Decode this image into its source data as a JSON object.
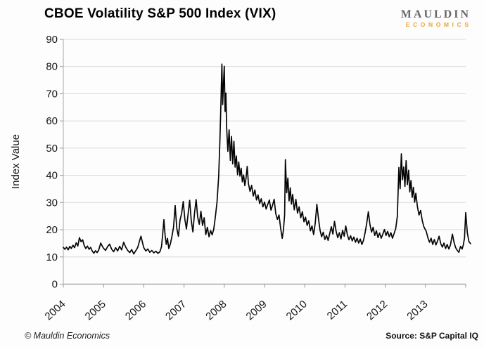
{
  "header": {
    "title": "CBOE Volatility S&P 500 Index (VIX)",
    "logo_line1": "MAULDIN",
    "logo_line2": "ECONOMICS"
  },
  "footer": {
    "copyright": "© Mauldin Economics",
    "source": "Source: S&P Capital IQ"
  },
  "colors": {
    "background": "#fdfdfd",
    "line": "#050505",
    "grid": "#d9d9d9",
    "axis": "#a8a8a8",
    "tick": "#999999",
    "label": "#141414",
    "logo_gray": "#66676a",
    "logo_orange": "#eca43c"
  },
  "chart_data": {
    "type": "line",
    "title": "CBOE Volatility S&P 500 Index (VIX)",
    "xlabel": "",
    "ylabel": "Index Value",
    "ylim": [
      0,
      90
    ],
    "ytick_step": 10,
    "x_tick_labels": [
      "2004",
      "2005",
      "2006",
      "2007",
      "2008",
      "2009",
      "2010",
      "2011",
      "2012",
      "2013"
    ],
    "x_units_total": 10,
    "grid": true,
    "legend": "none",
    "series": [
      {
        "name": "VIX",
        "points": [
          [
            0,
            13.5
          ],
          [
            0.04,
            12.8
          ],
          [
            0.08,
            13.6
          ],
          [
            0.12,
            12.6
          ],
          [
            0.16,
            13.9
          ],
          [
            0.2,
            13.1
          ],
          [
            0.24,
            14.3
          ],
          [
            0.28,
            13.4
          ],
          [
            0.32,
            15.2
          ],
          [
            0.36,
            14.0
          ],
          [
            0.4,
            17.1
          ],
          [
            0.44,
            15.6
          ],
          [
            0.48,
            16.3
          ],
          [
            0.52,
            14.2
          ],
          [
            0.56,
            13.1
          ],
          [
            0.6,
            14.0
          ],
          [
            0.64,
            12.8
          ],
          [
            0.68,
            13.5
          ],
          [
            0.72,
            12.1
          ],
          [
            0.76,
            11.4
          ],
          [
            0.8,
            12.3
          ],
          [
            0.84,
            11.6
          ],
          [
            0.88,
            12.5
          ],
          [
            0.93,
            15.1
          ],
          [
            0.97,
            13.9
          ],
          [
            1.0,
            13.2
          ],
          [
            1.05,
            12.4
          ],
          [
            1.1,
            13.8
          ],
          [
            1.15,
            14.7
          ],
          [
            1.2,
            12.9
          ],
          [
            1.25,
            11.9
          ],
          [
            1.3,
            13.4
          ],
          [
            1.35,
            12.2
          ],
          [
            1.4,
            13.9
          ],
          [
            1.45,
            12.6
          ],
          [
            1.5,
            15.4
          ],
          [
            1.55,
            13.6
          ],
          [
            1.6,
            12.4
          ],
          [
            1.65,
            11.6
          ],
          [
            1.7,
            12.7
          ],
          [
            1.75,
            11.1
          ],
          [
            1.8,
            12.3
          ],
          [
            1.85,
            13.5
          ],
          [
            1.9,
            16.2
          ],
          [
            1.93,
            17.6
          ],
          [
            1.97,
            15.1
          ],
          [
            2.0,
            13.4
          ],
          [
            2.05,
            12.2
          ],
          [
            2.1,
            12.9
          ],
          [
            2.15,
            11.7
          ],
          [
            2.2,
            12.4
          ],
          [
            2.25,
            11.5
          ],
          [
            2.3,
            12.1
          ],
          [
            2.35,
            11.3
          ],
          [
            2.4,
            11.9
          ],
          [
            2.44,
            13.8
          ],
          [
            2.47,
            18.5
          ],
          [
            2.5,
            23.7
          ],
          [
            2.53,
            17.9
          ],
          [
            2.56,
            14.6
          ],
          [
            2.59,
            16.8
          ],
          [
            2.62,
            13.1
          ],
          [
            2.66,
            14.8
          ],
          [
            2.7,
            17.5
          ],
          [
            2.74,
            21.0
          ],
          [
            2.78,
            28.9
          ],
          [
            2.82,
            20.5
          ],
          [
            2.86,
            17.6
          ],
          [
            2.9,
            23.5
          ],
          [
            2.94,
            26.0
          ],
          [
            2.98,
            30.4
          ],
          [
            3.02,
            24.0
          ],
          [
            3.06,
            20.3
          ],
          [
            3.1,
            25.6
          ],
          [
            3.14,
            30.8
          ],
          [
            3.18,
            23.3
          ],
          [
            3.22,
            19.2
          ],
          [
            3.26,
            26.1
          ],
          [
            3.3,
            31.1
          ],
          [
            3.34,
            24.6
          ],
          [
            3.38,
            22.0
          ],
          [
            3.42,
            26.8
          ],
          [
            3.46,
            21.6
          ],
          [
            3.5,
            24.4
          ],
          [
            3.54,
            18.2
          ],
          [
            3.58,
            20.9
          ],
          [
            3.62,
            17.4
          ],
          [
            3.66,
            19.7
          ],
          [
            3.7,
            18.1
          ],
          [
            3.74,
            20.3
          ],
          [
            3.78,
            24.9
          ],
          [
            3.82,
            30.2
          ],
          [
            3.86,
            39.4
          ],
          [
            3.89,
            52.0
          ],
          [
            3.92,
            68.0
          ],
          [
            3.94,
            80.9
          ],
          [
            3.96,
            66.0
          ],
          [
            3.98,
            74.0
          ],
          [
            4.0,
            80.1
          ],
          [
            4.02,
            63.5
          ],
          [
            4.04,
            70.3
          ],
          [
            4.06,
            57.4
          ],
          [
            4.09,
            48.8
          ],
          [
            4.12,
            56.7
          ],
          [
            4.15,
            45.5
          ],
          [
            4.18,
            54.3
          ],
          [
            4.21,
            44.2
          ],
          [
            4.24,
            52.5
          ],
          [
            4.27,
            43.0
          ],
          [
            4.3,
            47.1
          ],
          [
            4.33,
            40.2
          ],
          [
            4.36,
            44.9
          ],
          [
            4.39,
            39.7
          ],
          [
            4.42,
            42.6
          ],
          [
            4.45,
            37.6
          ],
          [
            4.48,
            40.1
          ],
          [
            4.51,
            36.2
          ],
          [
            4.54,
            38.9
          ],
          [
            4.57,
            43.3
          ],
          [
            4.6,
            37.0
          ],
          [
            4.64,
            34.1
          ],
          [
            4.68,
            36.3
          ],
          [
            4.72,
            32.4
          ],
          [
            4.76,
            34.6
          ],
          [
            4.8,
            30.9
          ],
          [
            4.84,
            32.8
          ],
          [
            4.88,
            29.6
          ],
          [
            4.92,
            31.4
          ],
          [
            4.96,
            28.4
          ],
          [
            5.0,
            30.2
          ],
          [
            5.04,
            27.6
          ],
          [
            5.08,
            29.3
          ],
          [
            5.12,
            30.9
          ],
          [
            5.16,
            27.2
          ],
          [
            5.2,
            29.0
          ],
          [
            5.24,
            31.2
          ],
          [
            5.28,
            25.9
          ],
          [
            5.32,
            23.8
          ],
          [
            5.36,
            25.4
          ],
          [
            5.4,
            20.6
          ],
          [
            5.44,
            16.8
          ],
          [
            5.47,
            19.9
          ],
          [
            5.5,
            25.5
          ],
          [
            5.52,
            45.8
          ],
          [
            5.55,
            33.6
          ],
          [
            5.58,
            39.0
          ],
          [
            5.61,
            30.6
          ],
          [
            5.64,
            35.4
          ],
          [
            5.67,
            29.4
          ],
          [
            5.7,
            33.0
          ],
          [
            5.74,
            27.3
          ],
          [
            5.78,
            31.2
          ],
          [
            5.82,
            26.1
          ],
          [
            5.86,
            28.4
          ],
          [
            5.9,
            24.4
          ],
          [
            5.94,
            26.6
          ],
          [
            5.98,
            22.9
          ],
          [
            6.02,
            24.6
          ],
          [
            6.06,
            21.6
          ],
          [
            6.1,
            23.3
          ],
          [
            6.14,
            19.6
          ],
          [
            6.18,
            21.4
          ],
          [
            6.22,
            18.2
          ],
          [
            6.26,
            22.4
          ],
          [
            6.3,
            29.4
          ],
          [
            6.34,
            24.3
          ],
          [
            6.38,
            19.9
          ],
          [
            6.42,
            17.4
          ],
          [
            6.46,
            19.1
          ],
          [
            6.5,
            16.4
          ],
          [
            6.54,
            17.9
          ],
          [
            6.58,
            16.1
          ],
          [
            6.62,
            18.6
          ],
          [
            6.66,
            21.1
          ],
          [
            6.7,
            18.4
          ],
          [
            6.74,
            23.1
          ],
          [
            6.78,
            19.4
          ],
          [
            6.82,
            17.1
          ],
          [
            6.86,
            18.9
          ],
          [
            6.9,
            16.6
          ],
          [
            6.94,
            19.8
          ],
          [
            6.98,
            17.6
          ],
          [
            7.02,
            21.4
          ],
          [
            7.06,
            18.1
          ],
          [
            7.1,
            16.3
          ],
          [
            7.14,
            17.8
          ],
          [
            7.18,
            15.9
          ],
          [
            7.22,
            17.3
          ],
          [
            7.26,
            15.4
          ],
          [
            7.3,
            16.9
          ],
          [
            7.34,
            15.1
          ],
          [
            7.38,
            16.6
          ],
          [
            7.42,
            14.6
          ],
          [
            7.46,
            16.1
          ],
          [
            7.5,
            18.9
          ],
          [
            7.54,
            22.4
          ],
          [
            7.58,
            26.6
          ],
          [
            7.62,
            21.9
          ],
          [
            7.66,
            19.1
          ],
          [
            7.7,
            20.9
          ],
          [
            7.74,
            17.9
          ],
          [
            7.78,
            19.6
          ],
          [
            7.82,
            17.1
          ],
          [
            7.86,
            18.8
          ],
          [
            7.9,
            16.9
          ],
          [
            7.94,
            18.4
          ],
          [
            7.98,
            20.1
          ],
          [
            8.02,
            17.9
          ],
          [
            8.06,
            19.4
          ],
          [
            8.1,
            17.4
          ],
          [
            8.14,
            18.9
          ],
          [
            8.18,
            16.9
          ],
          [
            8.22,
            18.6
          ],
          [
            8.26,
            20.4
          ],
          [
            8.3,
            24.9
          ],
          [
            8.34,
            42.9
          ],
          [
            8.37,
            35.1
          ],
          [
            8.4,
            47.9
          ],
          [
            8.43,
            38.4
          ],
          [
            8.46,
            43.1
          ],
          [
            8.49,
            35.9
          ],
          [
            8.52,
            45.4
          ],
          [
            8.55,
            36.6
          ],
          [
            8.58,
            41.9
          ],
          [
            8.61,
            33.9
          ],
          [
            8.64,
            38.1
          ],
          [
            8.67,
            31.9
          ],
          [
            8.7,
            35.6
          ],
          [
            8.73,
            30.1
          ],
          [
            8.76,
            33.4
          ],
          [
            8.8,
            28.4
          ],
          [
            8.84,
            25.4
          ],
          [
            8.88,
            27.1
          ],
          [
            8.92,
            23.4
          ],
          [
            8.96,
            21.1
          ],
          [
            9.02,
            19.4
          ],
          [
            9.06,
            17.1
          ],
          [
            9.1,
            15.4
          ],
          [
            9.14,
            16.9
          ],
          [
            9.18,
            14.6
          ],
          [
            9.22,
            16.4
          ],
          [
            9.26,
            14.4
          ],
          [
            9.3,
            15.9
          ],
          [
            9.34,
            17.6
          ],
          [
            9.38,
            14.9
          ],
          [
            9.42,
            13.6
          ],
          [
            9.46,
            15.1
          ],
          [
            9.5,
            13.1
          ],
          [
            9.54,
            14.6
          ],
          [
            9.58,
            12.9
          ],
          [
            9.62,
            14.4
          ],
          [
            9.67,
            18.4
          ],
          [
            9.71,
            15.4
          ],
          [
            9.75,
            13.4
          ],
          [
            9.79,
            12.4
          ],
          [
            9.83,
            11.7
          ],
          [
            9.87,
            13.9
          ],
          [
            9.91,
            12.9
          ],
          [
            9.94,
            14.4
          ],
          [
            9.97,
            17.0
          ],
          [
            10.0,
            26.3
          ],
          [
            10.04,
            18.9
          ],
          [
            10.08,
            15.6
          ],
          [
            10.12,
            14.9
          ]
        ]
      }
    ]
  }
}
